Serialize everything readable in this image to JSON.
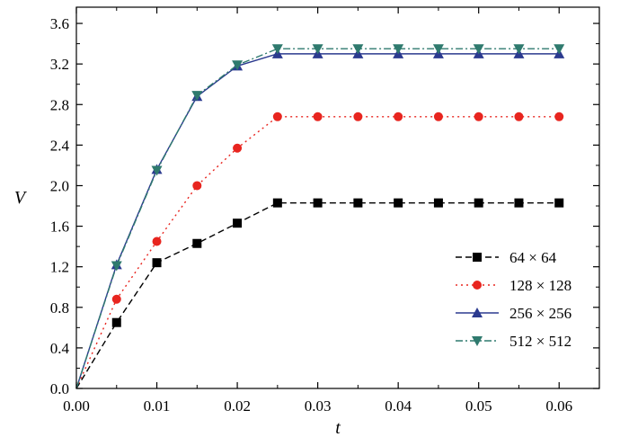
{
  "chart_data": {
    "type": "line",
    "xlabel": "t",
    "ylabel": "V",
    "xlim": [
      0.0,
      0.065
    ],
    "ylim": [
      0.0,
      3.76
    ],
    "xticks": [
      "0.00",
      "0.01",
      "0.02",
      "0.03",
      "0.04",
      "0.05",
      "0.06"
    ],
    "yticks": [
      "0.0",
      "0.4",
      "0.8",
      "1.2",
      "1.6",
      "2.0",
      "2.4",
      "2.8",
      "3.2",
      "3.6"
    ],
    "legend_position": "bottom-right",
    "x": [
      0.0,
      0.005,
      0.01,
      0.015,
      0.02,
      0.025,
      0.03,
      0.035,
      0.04,
      0.045,
      0.05,
      0.055,
      0.06
    ],
    "series": [
      {
        "name": "64 × 64",
        "color": "#000000",
        "line_style": "dashed",
        "marker": "square",
        "values": [
          0.0,
          0.65,
          1.24,
          1.43,
          1.63,
          1.83,
          1.83,
          1.83,
          1.83,
          1.83,
          1.83,
          1.83,
          1.83
        ]
      },
      {
        "name": "128 × 128",
        "color": "#e8251f",
        "line_style": "dotted",
        "marker": "circle",
        "values": [
          0.0,
          0.88,
          1.45,
          2.0,
          2.37,
          2.68,
          2.68,
          2.68,
          2.68,
          2.68,
          2.68,
          2.68,
          2.68
        ]
      },
      {
        "name": "256 × 256",
        "color": "#2b3a8f",
        "line_style": "solid",
        "marker": "triangle-up",
        "values": [
          0.0,
          1.22,
          2.16,
          2.88,
          3.18,
          3.3,
          3.3,
          3.3,
          3.3,
          3.3,
          3.3,
          3.3,
          3.3
        ]
      },
      {
        "name": "512 × 512",
        "color": "#2f7a6e",
        "line_style": "dash-dot",
        "marker": "triangle-down",
        "values": [
          0.0,
          1.21,
          2.15,
          2.89,
          3.19,
          3.35,
          3.35,
          3.35,
          3.35,
          3.35,
          3.35,
          3.35,
          3.35
        ]
      }
    ]
  }
}
